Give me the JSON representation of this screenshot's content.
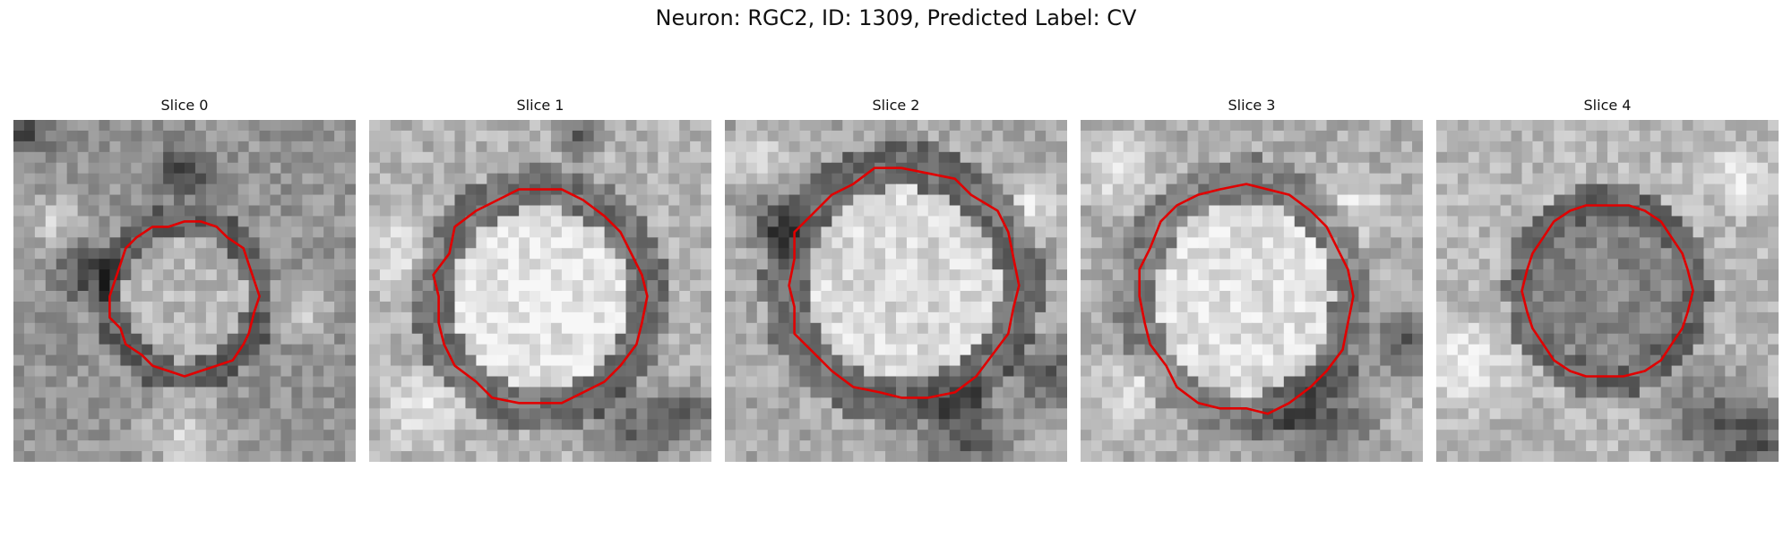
{
  "figure": {
    "title": "Neuron: RGC2, ID: 1309, Predicted Label: CV",
    "outline_color": "#e00000",
    "colormap": "grayscale"
  },
  "panels": [
    {
      "title": "Slice 0"
    },
    {
      "title": "Slice 1"
    },
    {
      "title": "Slice 2"
    },
    {
      "title": "Slice 3"
    },
    {
      "title": "Slice 4"
    }
  ]
}
